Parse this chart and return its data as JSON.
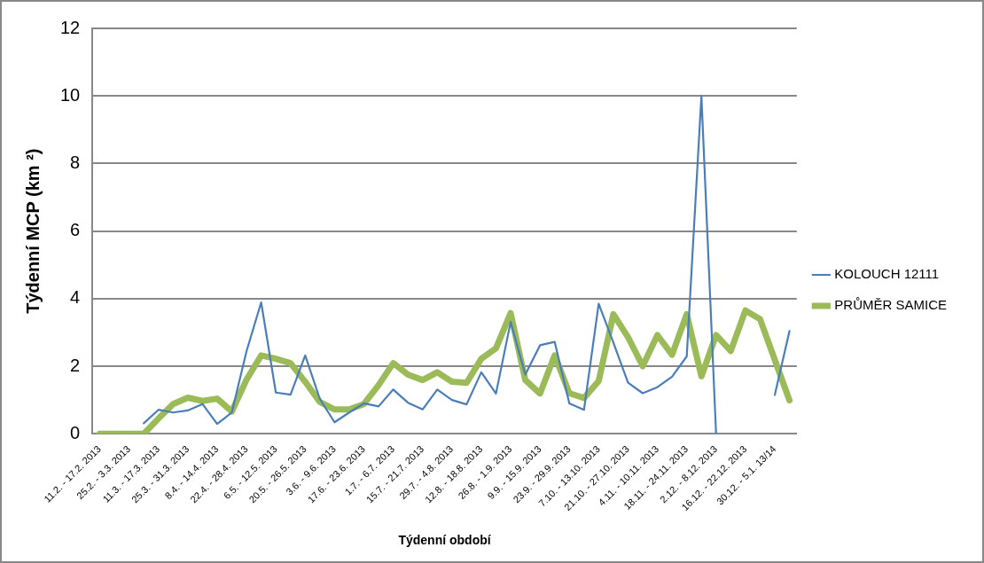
{
  "chart_data": {
    "type": "line",
    "xlabel": "Týdenní období",
    "ylabel": "Týdenní MCP (km ²)",
    "categories": [
      "11.2. - 17.2. 2013",
      null,
      "25.2. - 3.3. 2013",
      null,
      "11.3. - 17.3. 2013",
      null,
      "25.3. - 31.3. 2013",
      null,
      "8.4. - 14.4. 2013",
      null,
      "22.4. - 28.4. 2013",
      null,
      "6.5. - 12.5. 2013",
      null,
      "20.5. - 26.5. 2013",
      null,
      "3.6. - 9.6. 2013",
      null,
      "17.6. - 23.6. 2013",
      null,
      "1.7. - 6.7. 2013",
      null,
      "15.7. - 21.7. 2013",
      null,
      "29.7. - 4.8. 2013",
      null,
      "12.8. - 18.8. 2013",
      null,
      "26.8. - 1.9. 2013",
      null,
      "9.9. - 15.9. 2013",
      null,
      "23.9. - 29.9. 2013",
      null,
      "7.10. - 13.10. 2013",
      null,
      "21.10. - 27.10. 2013",
      null,
      "4.11. - 10.11. 2013",
      null,
      "18.11. - 24.11. 2013",
      null,
      "2.12. - 8.12. 2013",
      null,
      "16.12. - 22.12. 2013",
      null,
      "30.12. - 5.1. 13/14",
      null
    ],
    "series": [
      {
        "name": "KOLOUCH 12111",
        "color": "#4a7ebb",
        "values": [
          null,
          null,
          null,
          0.31,
          0.71,
          0.63,
          0.69,
          0.88,
          0.29,
          0.63,
          2.44,
          3.89,
          1.22,
          1.16,
          2.32,
          1.03,
          0.34,
          0.63,
          0.9,
          0.81,
          1.31,
          0.92,
          0.72,
          1.31,
          1.0,
          0.87,
          1.82,
          1.19,
          3.31,
          1.75,
          2.62,
          2.72,
          0.9,
          0.71,
          3.85,
          2.7,
          1.51,
          1.2,
          1.38,
          1.69,
          2.29,
          10.0,
          0,
          null,
          null,
          null,
          1.15,
          3.04
        ]
      },
      {
        "name": "PRŮMĚR SAMICE",
        "color": "#9bbb59",
        "values": [
          0,
          0,
          0,
          0,
          0.45,
          0.88,
          1.07,
          0.97,
          1.04,
          0.66,
          1.6,
          2.32,
          2.22,
          2.09,
          1.54,
          0.94,
          0.72,
          0.72,
          0.88,
          1.44,
          2.09,
          1.75,
          1.59,
          1.82,
          1.54,
          1.51,
          2.22,
          2.53,
          3.57,
          1.59,
          1.19,
          2.32,
          1.2,
          1.06,
          1.56,
          3.54,
          2.86,
          2.0,
          2.92,
          2.34,
          3.54,
          1.7,
          2.92,
          2.45,
          3.65,
          3.39,
          2.19,
          0.99
        ]
      }
    ],
    "ylim": [
      0,
      12
    ],
    "yticks": [
      0,
      2,
      4,
      6,
      8,
      10,
      12
    ],
    "grid": "y",
    "legend": "right",
    "marker": "none",
    "line_style": "solid"
  }
}
